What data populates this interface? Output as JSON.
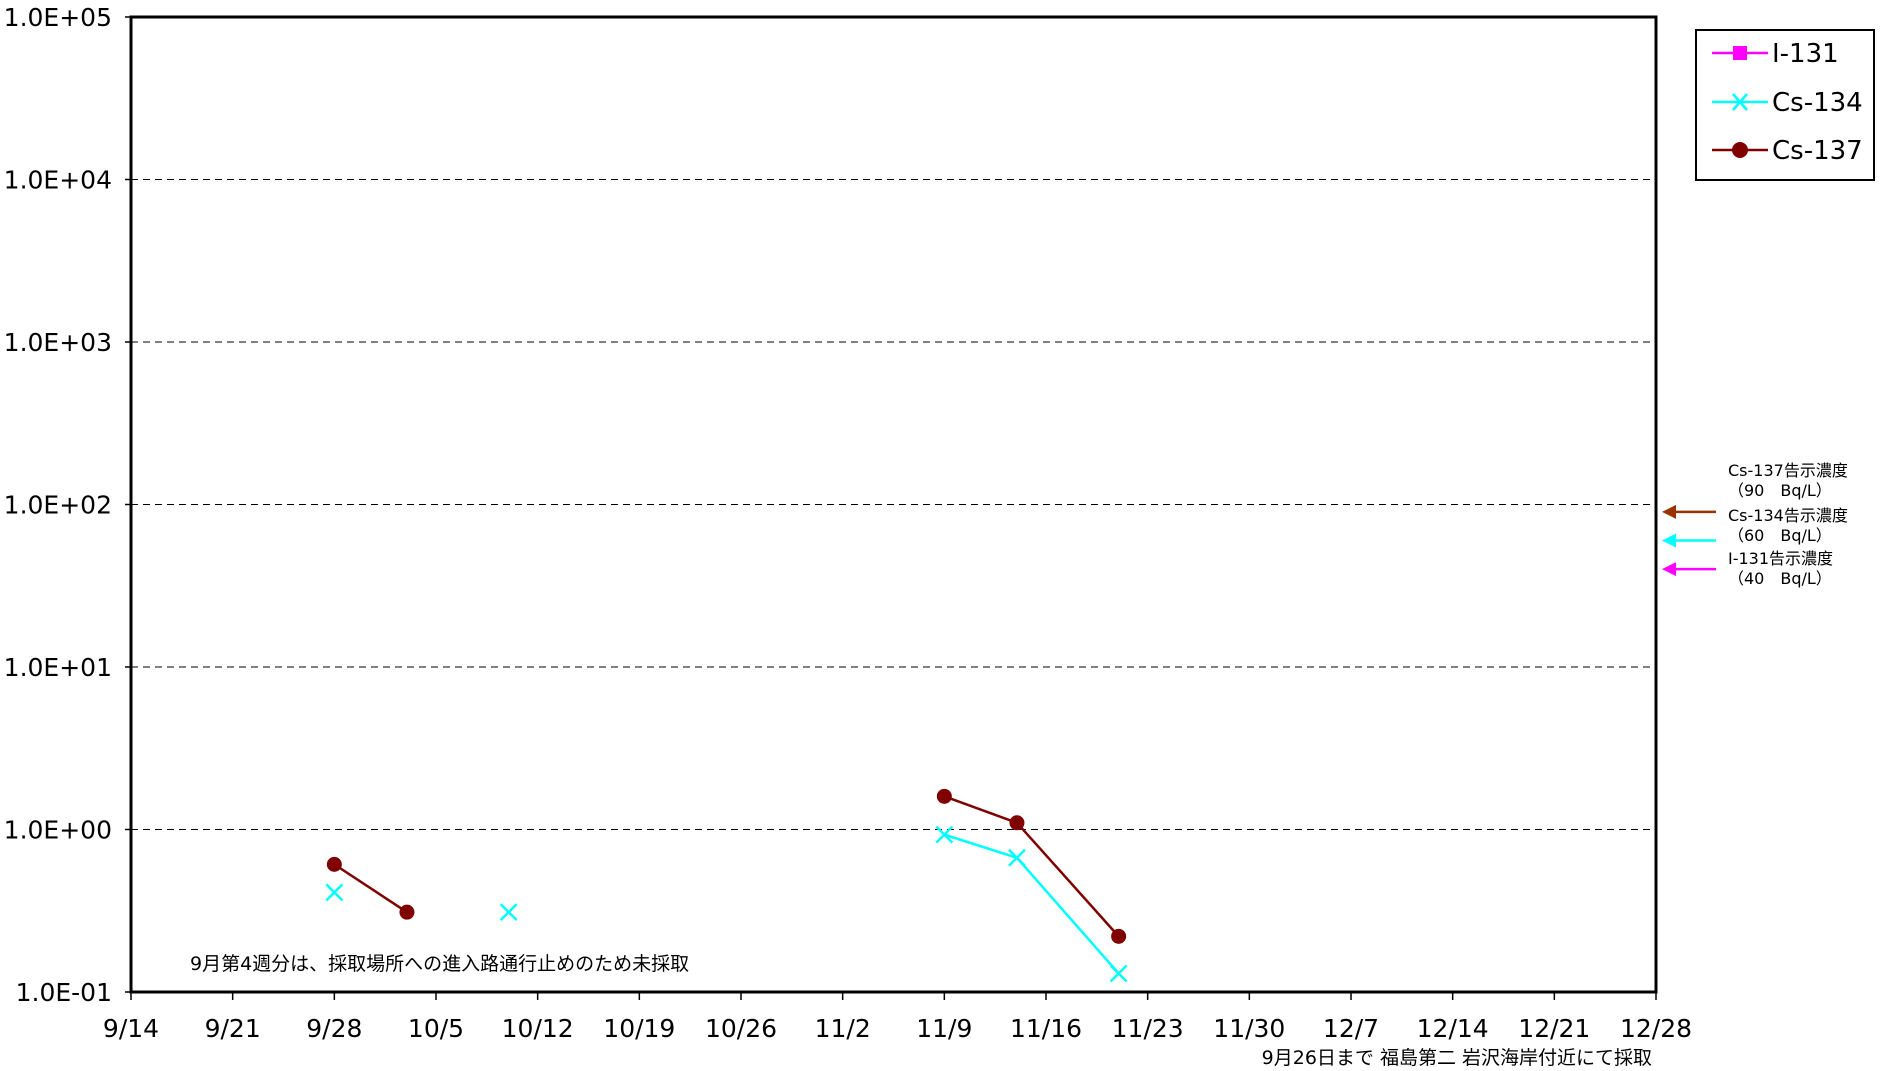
{
  "chart_data": {
    "type": "line",
    "y_scale": "log",
    "ylim": [
      0.1,
      100000
    ],
    "y_tick_labels": [
      "1.0E+05",
      "1.0E+04",
      "1.0E+03",
      "1.0E+02",
      "1.0E+01",
      "1.0E+00",
      "1.0E-01"
    ],
    "y_tick_values": [
      100000,
      10000,
      1000,
      100,
      10,
      1,
      0.1
    ],
    "x_type": "date",
    "xlim": [
      "2011-09-14",
      "2011-12-28"
    ],
    "x_tick_labels": [
      "9/14",
      "9/21",
      "9/28",
      "10/5",
      "10/12",
      "10/19",
      "10/26",
      "11/2",
      "11/9",
      "11/16",
      "11/23",
      "11/30",
      "12/7",
      "12/14",
      "12/21",
      "12/28"
    ],
    "x_tick_dates": [
      "2011-09-14",
      "2011-09-21",
      "2011-09-28",
      "2011-10-05",
      "2011-10-12",
      "2011-10-19",
      "2011-10-26",
      "2011-11-02",
      "2011-11-09",
      "2011-11-16",
      "2011-11-23",
      "2011-11-30",
      "2011-12-07",
      "2011-12-14",
      "2011-12-21",
      "2011-12-28"
    ],
    "grid": "horizontal-dashed",
    "legend_position": "top-right",
    "series": [
      {
        "name": "I-131",
        "color": "#ff00ff",
        "marker": "square",
        "segments": []
      },
      {
        "name": "Cs-134",
        "color": "#00ffff",
        "marker": "x",
        "segments": [
          [
            {
              "x": "2011-09-28",
              "y": 0.41
            }
          ],
          [
            {
              "x": "2011-10-10",
              "y": 0.31
            }
          ],
          [
            {
              "x": "2011-11-09",
              "y": 0.93
            },
            {
              "x": "2011-11-14",
              "y": 0.67
            },
            {
              "x": "2011-11-21",
              "y": 0.13
            }
          ]
        ]
      },
      {
        "name": "Cs-137",
        "color": "#800000",
        "marker": "circle",
        "segments": [
          [
            {
              "x": "2011-09-28",
              "y": 0.61
            },
            {
              "x": "2011-10-03",
              "y": 0.31
            }
          ],
          [
            {
              "x": "2011-11-09",
              "y": 1.6
            },
            {
              "x": "2011-11-14",
              "y": 1.1
            },
            {
              "x": "2011-11-21",
              "y": 0.22
            }
          ]
        ]
      }
    ],
    "limit_markers": [
      {
        "label": "Cs-137告示濃度",
        "sub": "（90　Bq/L）",
        "value": 90,
        "color": "#993300"
      },
      {
        "label": "Cs-134告示濃度",
        "sub": "（60　Bq/L）",
        "value": 60,
        "color": "#00ffff"
      },
      {
        "label": "I-131告示濃度",
        "sub": "（40　Bq/L）",
        "value": 40,
        "color": "#ff00ff"
      }
    ],
    "annotations": {
      "inside_note": "9月第4週分は、採取場所への進入路通行止めのため未採取",
      "footer_note": "9月26日まで 福島第二 岩沢海岸付近にて採取"
    }
  }
}
